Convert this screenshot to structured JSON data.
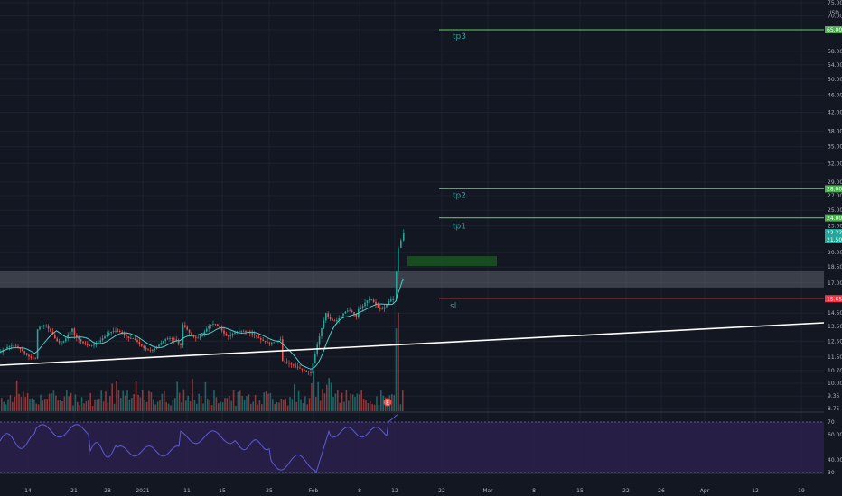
{
  "chart_data": {
    "type": "candlestick",
    "currency": "USD",
    "price_scale": "log",
    "y_ticks": [
      "75.00",
      "70.00",
      "65.00",
      "58.00",
      "54.00",
      "50.00",
      "46.00",
      "42.00",
      "38.00",
      "35.00",
      "32.00",
      "29.00",
      "27.00",
      "25.00",
      "23.00",
      "20.00",
      "18.50",
      "17.00",
      "14.50",
      "13.50",
      "12.50",
      "11.50",
      "10.70",
      "10.00",
      "9.35",
      "8.75"
    ],
    "x_ticks": [
      "14",
      "21",
      "28",
      "2021",
      "11",
      "15",
      "25",
      "Feb",
      "8",
      "12",
      "22",
      "Mar",
      "8",
      "15",
      "22",
      "26",
      "Apr",
      "12",
      "19"
    ],
    "price_tags": [
      {
        "value": "65.00",
        "color": "#4caf50"
      },
      {
        "value": "28.00",
        "color": "#4caf50"
      },
      {
        "value": "24.00",
        "color": "#4caf50"
      },
      {
        "value": "22.22",
        "color": "#26a69a"
      },
      {
        "value": "21.50",
        "color": "#26a69a"
      },
      {
        "value": "15.65",
        "color": "#f23645"
      }
    ],
    "levels": [
      {
        "label": "tp3",
        "price": 65.0,
        "color": "#4caf50"
      },
      {
        "label": "tp2",
        "price": 28.0,
        "color": "#4caf50"
      },
      {
        "label": "tp1",
        "price": 24.0,
        "color": "#4caf50"
      },
      {
        "label": "sl",
        "price": 15.65,
        "color": "#f23645"
      }
    ],
    "entry_zone": {
      "label": "",
      "low": 18.6,
      "high": 19.6
    },
    "resistance_zone": {
      "low": 16.6,
      "high": 18.1
    },
    "trendline": {
      "from": {
        "date": "2021-01-07",
        "price": 11.0
      },
      "to": {
        "date": "2021-04-25",
        "price": 13.6
      }
    },
    "last_price_marker": "E",
    "rsi": {
      "upper_ticks": [
        "70",
        "60.00"
      ],
      "lower_ticks": [
        "40.00",
        "30"
      ],
      "band": [
        30,
        70
      ]
    },
    "colors": {
      "up": "#26a69a",
      "down": "#ef5350",
      "ma": "#4dd0c8",
      "rsi_line": "#5b5bd6",
      "rsi_band": "#2a1f4a",
      "background": "#131722"
    }
  }
}
